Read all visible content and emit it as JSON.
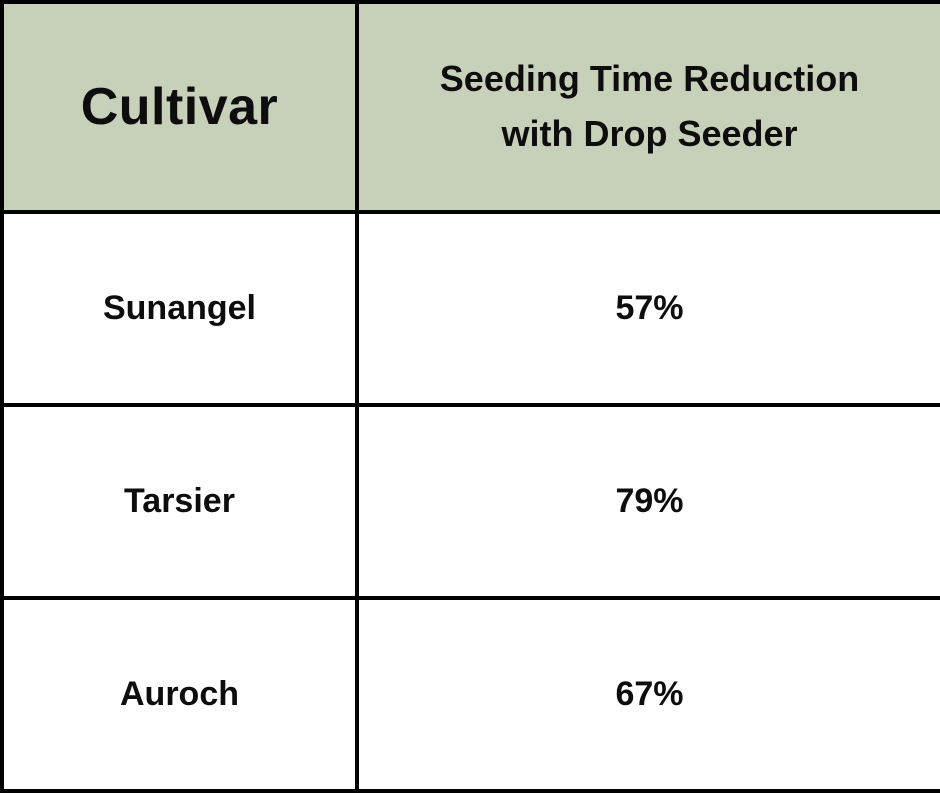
{
  "colors": {
    "header_bg": "#c7d1ba",
    "row_bg": "#ffffff",
    "border_color": "#000000",
    "text_color": "#0d0d0d"
  },
  "chart_data": {
    "type": "table",
    "title": "Seeding Time Reduction with Drop Seeder by Cultivar",
    "columns": [
      "Cultivar",
      "Seeding Time Reduction with Drop Seeder"
    ],
    "rows": [
      [
        "Sunangel",
        "57%"
      ],
      [
        "Tarsier",
        "79%"
      ],
      [
        "Auroch",
        "67%"
      ]
    ],
    "values_numeric": [
      {
        "cultivar": "Sunangel",
        "reduction_percent": 57
      },
      {
        "cultivar": "Tarsier",
        "reduction_percent": 79
      },
      {
        "cultivar": "Auroch",
        "reduction_percent": 67
      }
    ],
    "layout": {
      "header_background": "#c7d1ba",
      "grid": true,
      "text_align": "center"
    }
  }
}
